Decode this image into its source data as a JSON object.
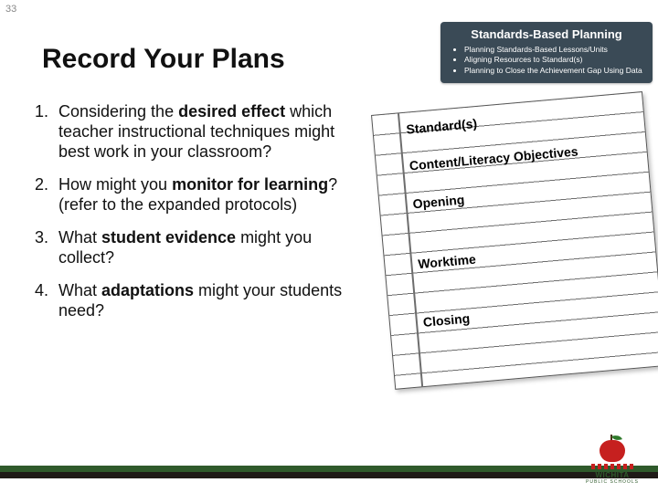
{
  "slide_number": "33",
  "title": "Record Your Plans",
  "badge": {
    "title": "Standards-Based Planning",
    "bullets": [
      "Planning Standards-Based Lessons/Units",
      "Aligning Resources to Standard(s)",
      "Planning to Close the Achievement Gap Using Data"
    ],
    "bg_color": "#3a4a56",
    "text_color": "#ffffff"
  },
  "questions": {
    "q1_pre": "Considering the ",
    "q1_b1": "desired effect",
    "q1_post": " which teacher instructional techniques might best work in your classroom?",
    "q2_pre": "How might you ",
    "q2_b1": "monitor for learning",
    "q2_post": "? (refer to the expanded protocols)",
    "q3_pre": "What ",
    "q3_b1": "student evidence",
    "q3_post": " might you collect?",
    "q4_pre": "What ",
    "q4_b1": "adaptations",
    "q4_post": " might your students need?"
  },
  "notecard": {
    "standard": "Standard(s)",
    "content": "Content/Literacy Objectives",
    "opening": "Opening",
    "worktime": "Worktime",
    "closing": "Closing"
  },
  "footer": {
    "rail_green": "#2f5a2b",
    "rail_dark": "#1f1a17"
  },
  "logo": {
    "name": "WICHITA",
    "sub": "PUBLIC SCHOOLS",
    "apple_color": "#c6201f",
    "leaf_color": "#2f7a2b"
  }
}
